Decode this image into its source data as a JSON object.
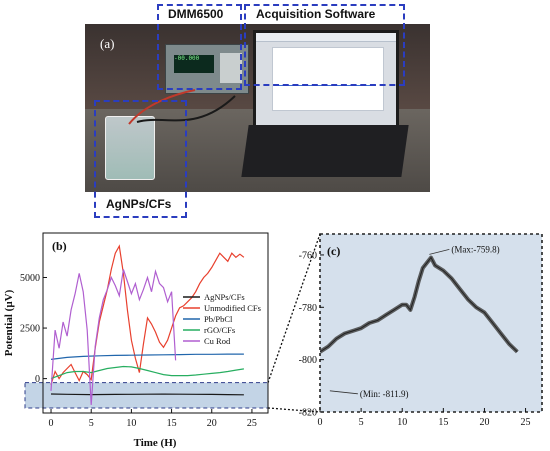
{
  "panel_a": {
    "label": "(a)",
    "box_dmm": "DMM6500",
    "box_software": "Acquisition Software",
    "box_sensor": "AgNPs/CFs"
  },
  "chart_data": [
    {
      "type": "line",
      "panel_label": "(b)",
      "xlabel": "Time (H)",
      "ylabel": "Potential (µV)",
      "xlim": [
        -1,
        27
      ],
      "ylim": [
        -1700,
        7200
      ],
      "xticks": [
        0,
        5,
        10,
        15,
        20,
        25
      ],
      "yticks": [
        0,
        2500,
        5000
      ],
      "grid": false,
      "legend_position": "right",
      "series": [
        {
          "name": "AgNPs/CFs",
          "color": "#1a1a1a",
          "x": [
            0,
            2,
            5,
            8,
            10,
            12,
            14,
            16,
            18,
            20,
            22,
            24
          ],
          "y": [
            -760,
            -775,
            -790,
            -780,
            -775,
            -770,
            -765,
            -770,
            -775,
            -780,
            -790,
            -800
          ]
        },
        {
          "name": "Unmodified CFs",
          "color": "#e8402e",
          "x": [
            0,
            0.5,
            1,
            1.5,
            2,
            2.5,
            3,
            3.5,
            4,
            4.5,
            5,
            5.5,
            6,
            6.5,
            7,
            7.5,
            8,
            8.5,
            9,
            9.5,
            10,
            10.5,
            11,
            11.5,
            12,
            12.5,
            13,
            13.5,
            14,
            14.5,
            15,
            15.5,
            16,
            16.5,
            17,
            17.5,
            18,
            18.5,
            19,
            19.5,
            20,
            20.5,
            21,
            21.5,
            22,
            22.5,
            23,
            23.5,
            24
          ],
          "y": [
            -300,
            350,
            0,
            300,
            500,
            700,
            300,
            -100,
            350,
            200,
            -50,
            1500,
            2800,
            3600,
            4400,
            5400,
            6200,
            6550,
            5200,
            3400,
            1900,
            1000,
            300,
            1700,
            3000,
            2700,
            2300,
            1800,
            1550,
            1900,
            2500,
            3100,
            3500,
            3600,
            3800,
            4000,
            4300,
            4700,
            5000,
            5200,
            5500,
            5850,
            6200,
            6000,
            5800,
            6200,
            6000,
            6150,
            6000
          ]
        },
        {
          "name": "Pb/PbCl",
          "color": "#2166ac",
          "x": [
            0,
            2,
            4,
            6,
            8,
            10,
            12,
            14,
            16,
            18,
            20,
            22,
            24
          ],
          "y": [
            950,
            1050,
            1100,
            1130,
            1150,
            1160,
            1170,
            1180,
            1190,
            1200,
            1200,
            1210,
            1210
          ]
        },
        {
          "name": "rGO/CFs",
          "color": "#27ae60",
          "x": [
            0,
            1,
            2,
            3,
            4,
            5,
            6,
            7,
            8,
            9,
            10,
            11,
            12,
            13,
            14,
            15,
            16,
            17,
            18,
            19,
            20,
            21,
            22,
            23,
            24
          ],
          "y": [
            0,
            150,
            300,
            350,
            350,
            300,
            400,
            500,
            550,
            600,
            580,
            500,
            400,
            300,
            200,
            150,
            150,
            150,
            180,
            220,
            260,
            300,
            350,
            420,
            480
          ]
        },
        {
          "name": "Cu Rod",
          "color": "#b05fd0",
          "x": [
            0,
            0.5,
            1,
            1.5,
            2,
            2.5,
            3,
            3.5,
            4,
            4.5,
            5,
            5.5,
            6,
            6.5,
            7,
            7.5,
            8,
            8.5,
            9,
            9.5,
            10,
            10.5,
            11,
            11.5,
            12,
            12.5,
            13,
            13.5,
            14,
            14.5,
            15,
            15.5
          ],
          "y": [
            -600,
            2400,
            1500,
            2800,
            2100,
            3400,
            4200,
            5200,
            4300,
            2400,
            -1300,
            1600,
            3000,
            3900,
            4400,
            5000,
            4600,
            4100,
            5400,
            4800,
            4200,
            4700,
            3900,
            4400,
            5000,
            4300,
            5300,
            4700,
            4500,
            3800,
            4300,
            900
          ]
        }
      ]
    },
    {
      "type": "line",
      "panel_label": "(c)",
      "xlim": [
        0,
        27
      ],
      "ylim": [
        -820,
        -752
      ],
      "xticks": [
        0,
        5,
        10,
        15,
        20,
        25
      ],
      "yticks": [
        -760,
        -780,
        -800,
        -820
      ],
      "grid": false,
      "annotations": [
        {
          "text": "(Max:-759.8)",
          "x": 13.3,
          "y": -759.8
        },
        {
          "text": "(Min: -811.9)",
          "x": 1.2,
          "y": -811.9
        }
      ],
      "series": [
        {
          "color": "#444444",
          "x": [
            0,
            1,
            2,
            3,
            4,
            5,
            6,
            7,
            8,
            9,
            10,
            10.5,
            11,
            11.5,
            12,
            12.5,
            13,
            13.5,
            14,
            15,
            16,
            17,
            18,
            19,
            20,
            21,
            22,
            23,
            24
          ],
          "y": [
            -797,
            -795,
            -792,
            -790,
            -789,
            -788,
            -786,
            -785,
            -783,
            -781,
            -779,
            -779,
            -781,
            -776,
            -770,
            -765,
            -763,
            -761,
            -764,
            -766,
            -769,
            -773,
            -777,
            -780,
            -782,
            -786,
            -790,
            -794,
            -797
          ]
        }
      ]
    }
  ]
}
